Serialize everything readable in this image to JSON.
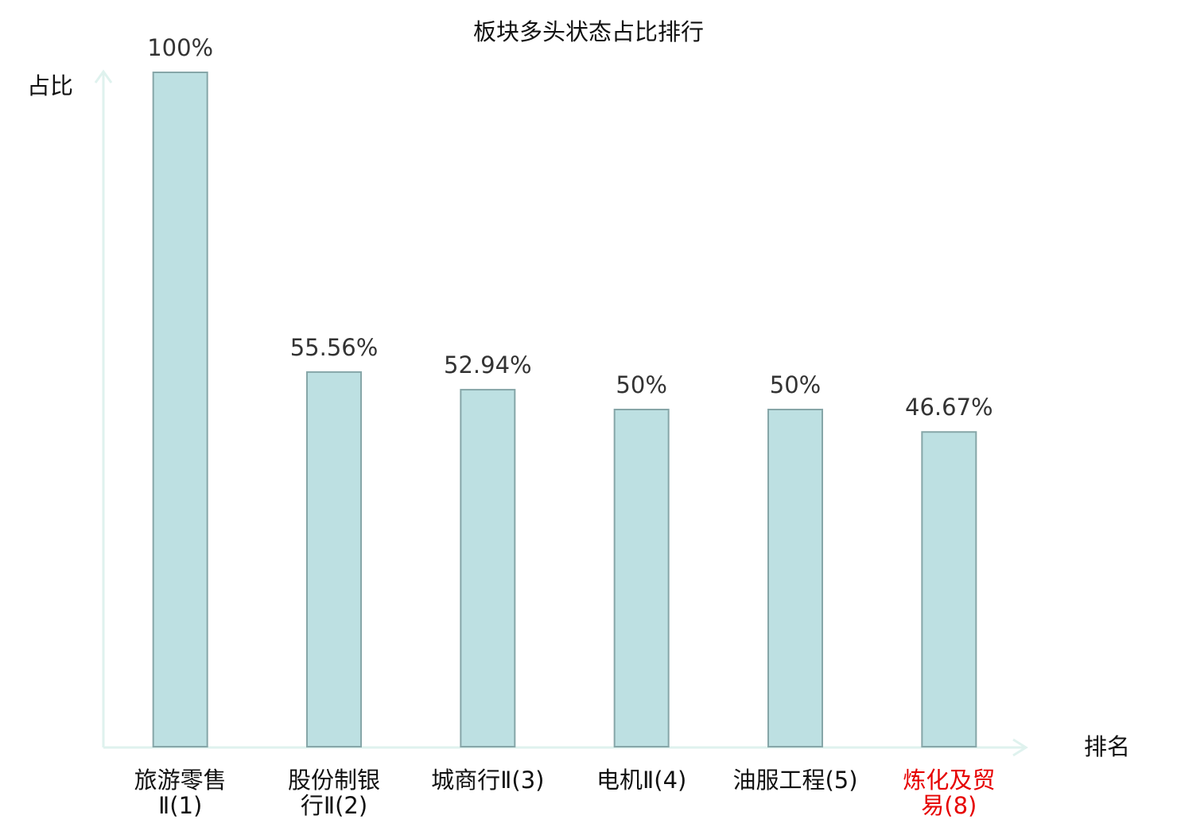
{
  "chart_data": {
    "type": "bar",
    "title": "板块多头状态占比排行",
    "y_label": "占比",
    "x_label": "排名",
    "categories": [
      "旅游零售Ⅱ(1)",
      "股份制银行Ⅱ(2)",
      "城商行Ⅱ(3)",
      "电机Ⅱ(4)",
      "油服工程(5)",
      "炼化及贸易(8)"
    ],
    "category_colors": [
      "#111111",
      "#111111",
      "#111111",
      "#111111",
      "#111111",
      "#e60000"
    ],
    "values": [
      100,
      55.56,
      52.94,
      50,
      50,
      46.67
    ],
    "value_labels": [
      "100%",
      "55.56%",
      "52.94%",
      "50%",
      "50%",
      "46.67%"
    ],
    "color": "#bde0e2",
    "edge_color": "#86a6a8",
    "ylim": [
      0,
      100
    ]
  }
}
